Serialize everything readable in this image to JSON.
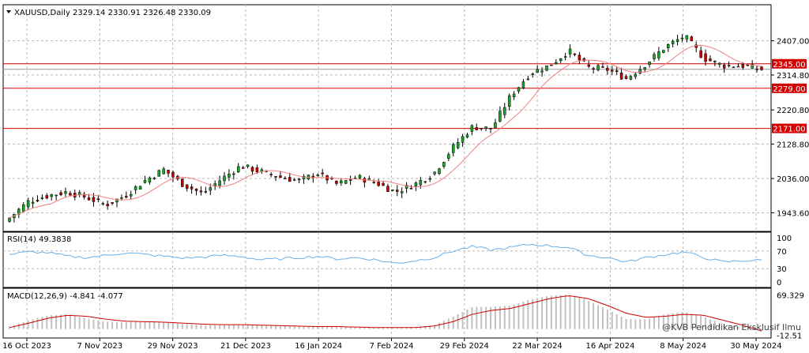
{
  "chart_data": {
    "type": "candlestick",
    "symbol": "XAUUSD,Daily",
    "ohlc_header": "2329.14 2330.91 2326.48 2330.09",
    "price_ticks": [
      "2407.00",
      "2314.80",
      "2220.80",
      "2128.80",
      "2036.00",
      "1943.60"
    ],
    "price_ylim": [
      1900,
      2470
    ],
    "dates": [
      "16 Oct 2023",
      "7 Nov 2023",
      "29 Nov 2023",
      "21 Dec 2023",
      "16 Jan 2024",
      "7 Feb 2024",
      "29 Feb 2024",
      "22 Mar 2024",
      "16 Apr 2024",
      "8 May 2024",
      "30 May 2024"
    ],
    "close_path": [
      1930,
      1975,
      1990,
      2000,
      1985,
      1965,
      1990,
      2030,
      2060,
      2020,
      1995,
      2035,
      2070,
      2055,
      2040,
      2030,
      2050,
      2020,
      2040,
      2025,
      2000,
      2020,
      2050,
      2120,
      2175,
      2170,
      2260,
      2320,
      2340,
      2380,
      2335,
      2330,
      2305,
      2345,
      2390,
      2420,
      2360,
      2340,
      2340,
      2330
    ],
    "last_close": 2330.09,
    "horizontal_levels": [
      {
        "value": 2345.0,
        "label": "2345.00",
        "color": "#d40000"
      },
      {
        "value": 2279.0,
        "label": "2279.00",
        "color": "#d40000"
      },
      {
        "value": 2171.0,
        "label": "2171.00",
        "color": "#d40000"
      }
    ],
    "extra_level": 2330.09,
    "rsi": {
      "label": "RSI(14) 49.3838",
      "ticks": [
        "100",
        "70",
        "30",
        "0"
      ],
      "ylim": [
        0,
        100
      ],
      "path": [
        62,
        68,
        66,
        58,
        55,
        60,
        66,
        62,
        58,
        54,
        56,
        60,
        58,
        50,
        52,
        55,
        58,
        52,
        55,
        50,
        42,
        48,
        55,
        70,
        80,
        72,
        78,
        85,
        82,
        78,
        60,
        55,
        45,
        55,
        62,
        68,
        55,
        45,
        48,
        49
      ]
    },
    "macd": {
      "label": "MACD(12,26,9) -4.841 -4.077",
      "ticks": [
        "69.329",
        "-12.51"
      ],
      "ylim": [
        -15,
        75
      ],
      "hist_path": [
        5,
        18,
        28,
        30,
        22,
        15,
        14,
        16,
        14,
        10,
        8,
        8,
        9,
        7,
        6,
        6,
        5,
        4,
        3,
        3,
        2,
        4,
        8,
        25,
        45,
        45,
        48,
        60,
        68,
        70,
        58,
        40,
        20,
        20,
        30,
        35,
        25,
        10,
        3,
        -4
      ],
      "signal_path": [
        3,
        12,
        22,
        28,
        26,
        20,
        16,
        15,
        14,
        12,
        10,
        9,
        9,
        8,
        7,
        6,
        5,
        5,
        4,
        3,
        3,
        3,
        6,
        15,
        30,
        38,
        42,
        52,
        62,
        68,
        62,
        48,
        32,
        24,
        26,
        30,
        28,
        18,
        8,
        -4
      ]
    },
    "colors": {
      "bull": "#1aa52b",
      "bear": "#cc0000",
      "ma": "#f08080",
      "rsi": "#6aaee8",
      "macd_hist": "#c0c0c0",
      "level": "#d40000",
      "grid": "#b8b8b8"
    }
  },
  "watermark": "@KVB Pendidikan Eksklusif Ilmu"
}
